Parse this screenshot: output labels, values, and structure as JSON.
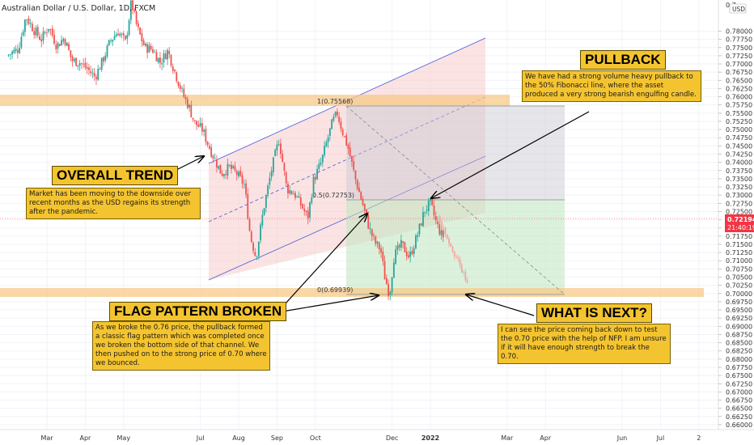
{
  "header": {
    "symbol": "Australian Dollar / U.S. Dollar, 1D, FXCM"
  },
  "chart_data": {
    "type": "candlestick",
    "title": "Australian Dollar / U.S. Dollar, 1D, FXCM",
    "currency": "USD",
    "ylim": [
      0.6585,
      0.7895
    ],
    "y_ticks": [
      "0.78000",
      "0.77750",
      "0.77500",
      "0.77250",
      "0.77000",
      "0.76750",
      "0.76500",
      "0.76250",
      "0.76000",
      "0.75750",
      "0.75500",
      "0.75250",
      "0.75000",
      "0.74750",
      "0.74500",
      "0.74250",
      "0.74000",
      "0.73750",
      "0.73500",
      "0.73250",
      "0.73000",
      "0.72750",
      "0.72500",
      "0.72250",
      "0.72000",
      "0.71750",
      "0.71500",
      "0.71250",
      "0.71000",
      "0.70750",
      "0.70500",
      "0.70250",
      "0.70000",
      "0.69750",
      "0.69500",
      "0.69250",
      "0.69000",
      "0.68750",
      "0.68500",
      "0.68250",
      "0.68000",
      "0.67750",
      "0.67500",
      "0.67250",
      "0.67000",
      "0.66750",
      "0.66500",
      "0.66250",
      "0.66000"
    ],
    "y_top_partial": "0.7",
    "x_ticks": [
      {
        "label": "Mar",
        "x": 0.0
      },
      {
        "label": "Apr",
        "x": 1.0
      },
      {
        "label": "May",
        "x": 2.0
      },
      {
        "label": "Jul",
        "x": 4.0
      },
      {
        "label": "Aug",
        "x": 5.0
      },
      {
        "label": "Sep",
        "x": 6.0
      },
      {
        "label": "Oct",
        "x": 7.0
      },
      {
        "label": "Dec",
        "x": 9.0
      },
      {
        "label": "2022",
        "x": 10.0
      },
      {
        "label": "Mar",
        "x": 12.0
      },
      {
        "label": "Apr",
        "x": 13.0
      },
      {
        "label": "Jun",
        "x": 15.0
      },
      {
        "label": "Jul",
        "x": 16.0
      },
      {
        "label": "2",
        "x": 17.0
      }
    ],
    "price_path": [
      [
        -1.0,
        0.7725
      ],
      [
        -0.7,
        0.7745
      ],
      [
        -0.5,
        0.7845
      ],
      [
        -0.3,
        0.7805
      ],
      [
        -0.1,
        0.7775
      ],
      [
        0.1,
        0.7815
      ],
      [
        0.3,
        0.7755
      ],
      [
        0.5,
        0.778
      ],
      [
        0.7,
        0.771
      ],
      [
        0.9,
        0.7705
      ],
      [
        1.1,
        0.7685
      ],
      [
        1.3,
        0.766
      ],
      [
        1.5,
        0.771
      ],
      [
        1.7,
        0.777
      ],
      [
        1.9,
        0.78
      ],
      [
        2.1,
        0.7765
      ],
      [
        2.25,
        0.789
      ],
      [
        2.4,
        0.781
      ],
      [
        2.6,
        0.775
      ],
      [
        2.8,
        0.7745
      ],
      [
        3.0,
        0.7705
      ],
      [
        3.2,
        0.774
      ],
      [
        3.4,
        0.767
      ],
      [
        3.6,
        0.7605
      ],
      [
        3.75,
        0.757
      ],
      [
        3.9,
        0.752
      ],
      [
        4.1,
        0.75
      ],
      [
        4.25,
        0.7455
      ],
      [
        4.4,
        0.7415
      ],
      [
        4.6,
        0.7365
      ],
      [
        4.8,
        0.7385
      ],
      [
        5.0,
        0.7365
      ],
      [
        5.2,
        0.733
      ],
      [
        5.35,
        0.7175
      ],
      [
        5.5,
        0.711
      ],
      [
        5.7,
        0.726
      ],
      [
        5.9,
        0.7375
      ],
      [
        6.1,
        0.747
      ],
      [
        6.3,
        0.732
      ],
      [
        6.5,
        0.7305
      ],
      [
        6.7,
        0.7265
      ],
      [
        6.85,
        0.723
      ],
      [
        7.0,
        0.7345
      ],
      [
        7.2,
        0.74
      ],
      [
        7.35,
        0.7465
      ],
      [
        7.5,
        0.7525
      ],
      [
        7.62,
        0.755
      ],
      [
        7.75,
        0.7495
      ],
      [
        7.9,
        0.7445
      ],
      [
        8.1,
        0.7345
      ],
      [
        8.3,
        0.7265
      ],
      [
        8.45,
        0.72
      ],
      [
        8.6,
        0.7155
      ],
      [
        8.75,
        0.7135
      ],
      [
        8.85,
        0.7055
      ],
      [
        8.98,
        0.6995
      ],
      [
        9.1,
        0.7115
      ],
      [
        9.3,
        0.715
      ],
      [
        9.5,
        0.711
      ],
      [
        9.7,
        0.7175
      ],
      [
        9.9,
        0.7255
      ],
      [
        10.05,
        0.7275
      ],
      [
        10.2,
        0.7215
      ],
      [
        10.35,
        0.7175
      ]
    ],
    "projection": [
      [
        10.2,
        0.7235
      ],
      [
        10.6,
        0.713
      ],
      [
        11.0,
        0.702
      ]
    ],
    "fibonacci": [
      {
        "level": "1(0.75568)",
        "price": 0.75568
      },
      {
        "level": "0.5(0.72753)",
        "price": 0.72753
      },
      {
        "level": "0(0.69939)",
        "price": 0.69939
      }
    ],
    "support_zones": [
      0.756,
      0.7
    ],
    "current_price": "0.72194",
    "countdown": "21:40:19"
  },
  "annotations": {
    "overall_trend": {
      "title": "OVERALL TREND",
      "body": "Market has been moving to the downside over recent months as the USD regains its strength after the pandemic."
    },
    "pullback": {
      "title": "PULLBACK",
      "body": "We have had a strong volume heavy pullback to the 50% Fibonacci line, where the asset produced a very strong bearish engulfing candle."
    },
    "flag_pattern": {
      "title": "FLAG PATTERN BROKEN",
      "body": "As we broke the 0.76 price, the pullback formed a classic flag pattern which was completed once we broken the bottom side of that channel. We then pushed on to the strong price of 0.70 where we bounced."
    },
    "what_next": {
      "title": "WHAT IS NEXT?",
      "body": "I can see the price coming back down to test the 0.70 price with the help of NFP. I am unsure if it will have enough strength to break the 0.70."
    }
  },
  "colors": {
    "candle_up": "#26a69a",
    "candle_down": "#ef5350",
    "channel_line": "#4a5bd4",
    "zone": "#f7c98a",
    "annotation_bg": "#f4c430",
    "price_label": "#f23645"
  }
}
